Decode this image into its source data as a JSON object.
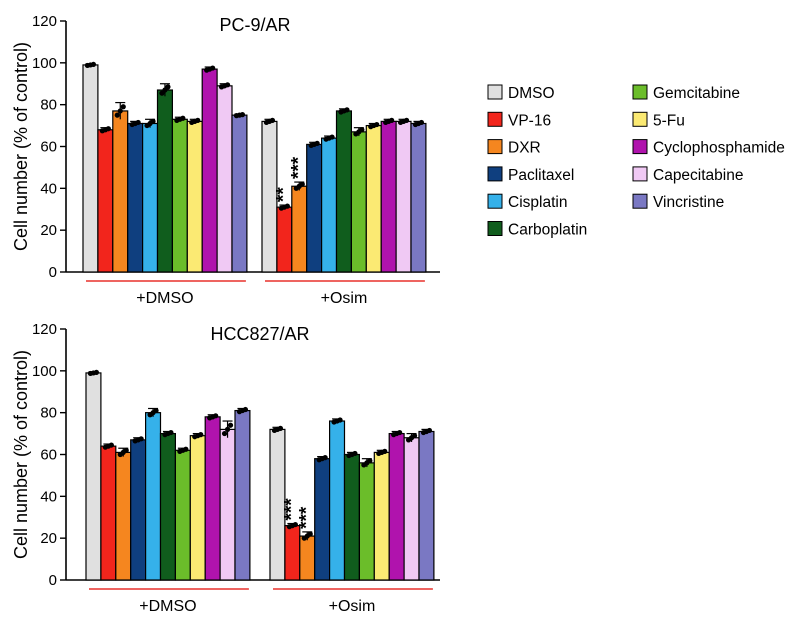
{
  "legend": [
    {
      "label": "DMSO",
      "color": "#e0e0e0"
    },
    {
      "label": "VP-16",
      "color": "#f2251c"
    },
    {
      "label": "DXR",
      "color": "#f5861f"
    },
    {
      "label": "Paclitaxel",
      "color": "#0f3f7f"
    },
    {
      "label": "Cisplatin",
      "color": "#35b1ea"
    },
    {
      "label": "Carboplatin",
      "color": "#105d1d"
    },
    {
      "label": "Gemcitabine",
      "color": "#6bbd2a"
    },
    {
      "label": "5-Fu",
      "color": "#fbea73"
    },
    {
      "label": "Cyclophosphamide",
      "color": "#b013ad"
    },
    {
      "label": "Capecitabine",
      "color": "#f0c9f4"
    },
    {
      "label": "Vincristine",
      "color": "#7a78c3"
    }
  ],
  "chart_data": [
    {
      "type": "bar",
      "title": "PC-9/AR",
      "ylabel": "Cell number (% of control)",
      "ylim": [
        0,
        120
      ],
      "yticks": [
        "0",
        "20",
        "40",
        "60",
        "80",
        "100",
        "120"
      ],
      "groups": [
        "+DMSO",
        "+Osim"
      ],
      "series_names": [
        "DMSO",
        "VP-16",
        "DXR",
        "Paclitaxel",
        "Cisplatin",
        "Carboplatin",
        "Gemcitabine",
        "5-Fu",
        "Cyclophosphamide",
        "Capecitabine",
        "Vincristine"
      ],
      "values": [
        [
          99,
          68,
          77,
          71,
          71,
          87,
          73,
          72,
          97,
          89,
          75
        ],
        [
          72,
          31,
          41,
          61,
          64,
          77,
          67,
          70,
          72,
          72,
          71
        ]
      ],
      "errors": [
        [
          0.5,
          1,
          4,
          1,
          2,
          3,
          1,
          1,
          1,
          1,
          0.5
        ],
        [
          1,
          1,
          2,
          1,
          1,
          1,
          2,
          1,
          1,
          1,
          1
        ]
      ],
      "annotations": [
        {
          "group": "+Osim",
          "series": "VP-16",
          "text": "**"
        },
        {
          "group": "+Osim",
          "series": "DXR",
          "text": "***"
        }
      ]
    },
    {
      "type": "bar",
      "title": "HCC827/AR",
      "ylabel": "Cell number (% of control)",
      "ylim": [
        0,
        120
      ],
      "yticks": [
        "0",
        "20",
        "40",
        "60",
        "80",
        "100",
        "120"
      ],
      "groups": [
        "+DMSO",
        "+Osim"
      ],
      "series_names": [
        "DMSO",
        "VP-16",
        "DXR",
        "Paclitaxel",
        "Cisplatin",
        "Carboplatin",
        "Gemcitabine",
        "5-Fu",
        "Cyclophosphamide",
        "Capecitabine",
        "Vincristine"
      ],
      "values": [
        [
          99,
          64,
          61,
          67,
          80,
          70,
          62,
          69,
          78,
          72,
          81
        ],
        [
          72,
          26,
          21,
          58,
          76,
          60,
          56,
          61,
          70,
          68,
          71
        ]
      ],
      "errors": [
        [
          0.5,
          1,
          2,
          1,
          2,
          1,
          1,
          1,
          1,
          4,
          1
        ],
        [
          1,
          1,
          2,
          1,
          1,
          1,
          2,
          1,
          1,
          2,
          1
        ]
      ],
      "annotations": [
        {
          "group": "+Osim",
          "series": "VP-16",
          "text": "***"
        },
        {
          "group": "+Osim",
          "series": "DXR",
          "text": "***"
        }
      ]
    }
  ]
}
